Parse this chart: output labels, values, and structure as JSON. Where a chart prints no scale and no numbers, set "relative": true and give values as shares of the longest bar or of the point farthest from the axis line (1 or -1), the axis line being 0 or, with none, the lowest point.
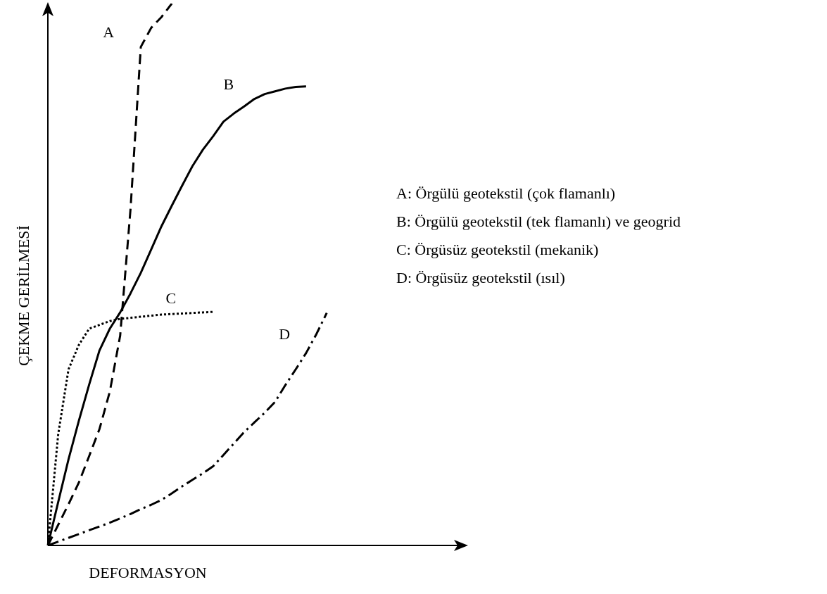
{
  "chart_data": {
    "type": "line",
    "relative": true,
    "xlabel": "DEFORMASYON",
    "ylabel": "ÇEKME GERİLMESİ",
    "tick_labels": false,
    "legend": false,
    "marker": "none",
    "categories": [
      null,
      null,
      null,
      null,
      null,
      null,
      null,
      null,
      null,
      null,
      null,
      null,
      null,
      null,
      null,
      null,
      null,
      null,
      null,
      null,
      null,
      null,
      null,
      null,
      null,
      null,
      null,
      null,
      null,
      null,
      null,
      null,
      null,
      null,
      null,
      null,
      null,
      null,
      null,
      null,
      null
    ],
    "series": [
      {
        "name": "A",
        "color": "#000000",
        "line_style": "dashed",
        "values": [
          0,
          0.038,
          0.076,
          0.116,
          0.165,
          0.215,
          0.284,
          0.387,
          0.62,
          0.92,
          0.955,
          0.975,
          1.0,
          null,
          null,
          null,
          null,
          null,
          null,
          null,
          null,
          null,
          null,
          null,
          null,
          null,
          null,
          null,
          null,
          null,
          null,
          null,
          null,
          null,
          null,
          null,
          null,
          null,
          null,
          null,
          null
        ]
      },
      {
        "name": "B",
        "color": "#000000",
        "line_style": "solid",
        "values": [
          0,
          0.08,
          0.159,
          0.23,
          0.297,
          0.36,
          0.4,
          0.43,
          0.465,
          0.503,
          0.546,
          0.589,
          0.627,
          0.664,
          0.7,
          0.73,
          0.755,
          0.782,
          0.797,
          0.81,
          0.824,
          0.833,
          0.838,
          0.843,
          0.846,
          0.847,
          null,
          null,
          null,
          null,
          null,
          null,
          null,
          null,
          null,
          null,
          null,
          null,
          null,
          null,
          null
        ]
      },
      {
        "name": "C",
        "color": "#000000",
        "line_style": "dotted",
        "values": [
          0,
          0.205,
          0.325,
          0.37,
          0.4,
          0.407,
          0.414,
          0.418,
          0.42,
          0.422,
          0.424,
          0.426,
          0.427,
          0.428,
          0.429,
          0.43,
          0.431,
          null,
          null,
          null,
          null,
          null,
          null,
          null,
          null,
          null,
          null,
          null,
          null,
          null,
          null,
          null,
          null,
          null,
          null,
          null,
          null,
          null,
          null,
          null,
          null
        ]
      },
      {
        "name": "D",
        "color": "#000000",
        "line_style": "dashdot",
        "values": [
          0,
          0.007,
          0.014,
          0.021,
          0.028,
          0.035,
          0.042,
          0.05,
          0.058,
          0.067,
          0.075,
          0.084,
          0.096,
          0.109,
          0.121,
          0.133,
          0.146,
          0.167,
          0.188,
          0.209,
          0.227,
          0.245,
          0.265,
          0.296,
          0.325,
          0.355,
          0.39,
          0.429,
          null,
          null,
          null,
          null,
          null,
          null,
          null,
          null,
          null,
          null,
          null,
          null,
          null
        ]
      }
    ],
    "annotations": [
      "A: Örgülü geotekstil (çok flamanlı)",
      "B: Örgülü geotekstil (tek flamanlı) ve geogrid",
      "C: Örgüsüz geotekstil (mekanik)",
      "D: Örgüsüz geotekstil (ısıl)"
    ]
  }
}
